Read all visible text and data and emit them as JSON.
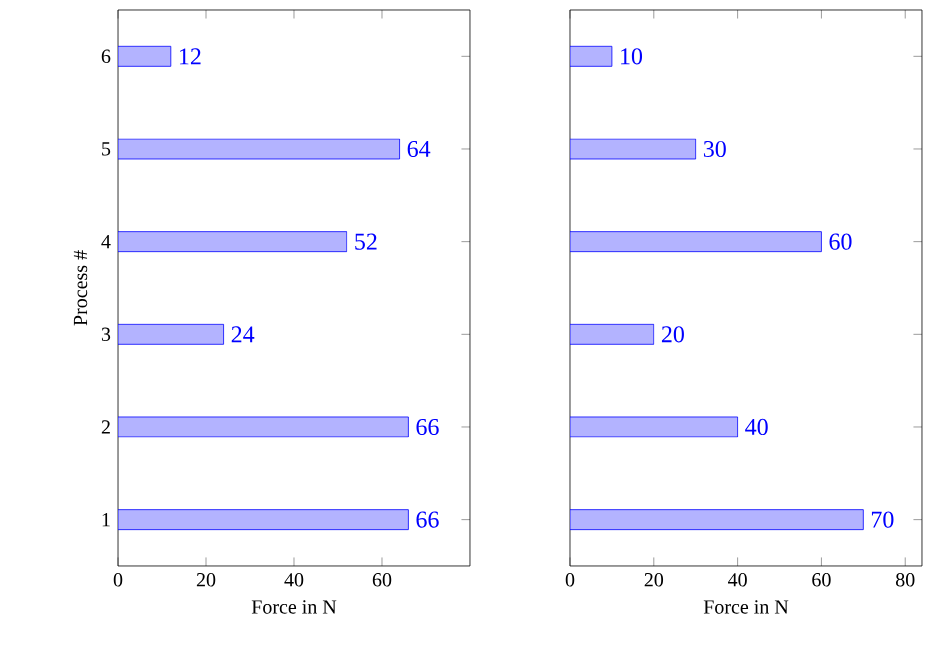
{
  "chart_data": [
    {
      "type": "bar",
      "orientation": "horizontal",
      "categories": [
        "6",
        "5",
        "4",
        "3",
        "2",
        "1"
      ],
      "values": [
        12,
        64,
        52,
        24,
        66,
        66
      ],
      "color": "#b3b3ff",
      "xlim": [
        0,
        80
      ],
      "xticks": [
        0,
        20,
        40,
        60
      ],
      "xlabel": "Force in N",
      "ylabel": "Process #",
      "data_labels": true
    },
    {
      "type": "bar",
      "orientation": "horizontal",
      "categories": [
        "6",
        "5",
        "4",
        "3",
        "2",
        "1"
      ],
      "values": [
        10,
        30,
        60,
        20,
        40,
        70
      ],
      "color": "#b3b3ff",
      "xlim": [
        0,
        84
      ],
      "xticks": [
        0,
        20,
        40,
        60,
        80
      ],
      "xlabel": "Force in N",
      "data_labels": true,
      "tick_labels": "x"
    }
  ]
}
